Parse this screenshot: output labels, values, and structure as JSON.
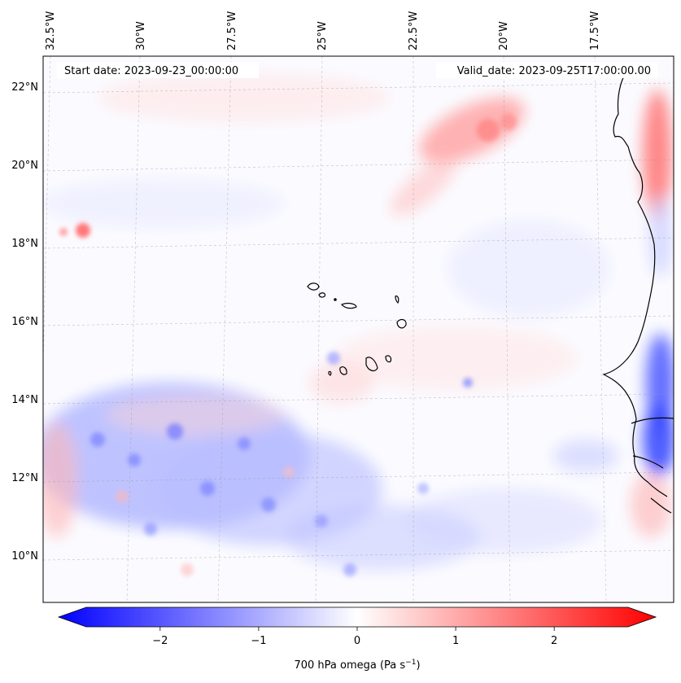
{
  "map": {
    "start_date_label": "Start date: 2023-09-23_00:00:00",
    "valid_date_label": "Valid_date: 2023-09-25T17:00:00.00",
    "lon_labels": [
      "32.5°W",
      "30°W",
      "27.5°W",
      "25°W",
      "22.5°W",
      "20°W",
      "17.5°W"
    ],
    "lat_labels": [
      "22°N",
      "20°N",
      "18°N",
      "16°N",
      "14°N",
      "12°N",
      "10°N"
    ],
    "field": "700 hPa omega",
    "colors": {
      "negative": "#0000ff",
      "zero": "#ffffff",
      "positive": "#ff0000"
    }
  },
  "colorbar": {
    "label": "700 hPa omega (Pa s",
    "label_sup": "−1",
    "label_close": ")",
    "ticks": [
      {
        "value": -2,
        "text": "−2"
      },
      {
        "value": -1,
        "text": "−1"
      },
      {
        "value": 0,
        "text": "0"
      },
      {
        "value": 1,
        "text": "1"
      },
      {
        "value": 2,
        "text": "2"
      }
    ],
    "range": [
      -2.75,
      2.75
    ],
    "extend": "both"
  }
}
